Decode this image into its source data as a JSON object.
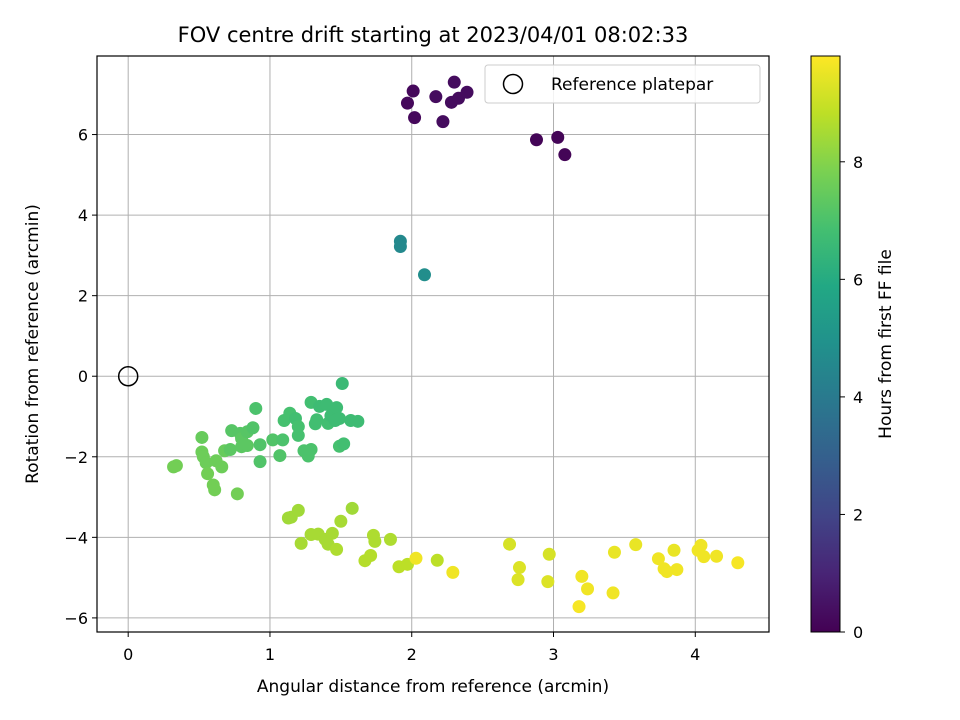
{
  "chart_data": {
    "type": "scatter",
    "title": "FOV centre drift starting at 2023/04/01 08:02:33",
    "xlabel": "Angular distance from reference (arcmin)",
    "ylabel": "Rotation from reference (arcmin)",
    "xlim": [
      -0.22,
      4.52
    ],
    "ylim": [
      -6.35,
      7.95
    ],
    "xticks": [
      "0",
      "1",
      "2",
      "3",
      "4"
    ],
    "yticks": [
      "−6",
      "−4",
      "−2",
      "0",
      "2",
      "4",
      "6"
    ],
    "grid": true,
    "legend": {
      "position": "top-right",
      "entries": [
        "Reference platepar"
      ]
    },
    "reference_point": {
      "x": 0,
      "y": 0
    },
    "colorbar": {
      "label": "Hours from first FF file",
      "colormap": "viridis",
      "range": [
        0,
        9.8
      ],
      "ticks": [
        "0",
        "2",
        "4",
        "6",
        "8"
      ]
    },
    "points": [
      {
        "x": 1.97,
        "y": 6.78,
        "c": 0.2
      },
      {
        "x": 2.01,
        "y": 7.08,
        "c": 0.2
      },
      {
        "x": 2.02,
        "y": 6.42,
        "c": 0.2
      },
      {
        "x": 2.17,
        "y": 6.94,
        "c": 0.3
      },
      {
        "x": 2.22,
        "y": 6.32,
        "c": 0.3
      },
      {
        "x": 2.28,
        "y": 6.8,
        "c": 0.3
      },
      {
        "x": 2.3,
        "y": 7.3,
        "c": 0.3
      },
      {
        "x": 2.33,
        "y": 6.9,
        "c": 0.3
      },
      {
        "x": 2.39,
        "y": 7.05,
        "c": 0.3
      },
      {
        "x": 2.88,
        "y": 5.87,
        "c": 0.1
      },
      {
        "x": 3.03,
        "y": 5.93,
        "c": 0.1
      },
      {
        "x": 3.08,
        "y": 5.5,
        "c": 0.1
      },
      {
        "x": 1.92,
        "y": 3.35,
        "c": 4.6
      },
      {
        "x": 1.92,
        "y": 3.22,
        "c": 4.6
      },
      {
        "x": 2.09,
        "y": 2.52,
        "c": 4.8
      },
      {
        "x": 0.34,
        "y": -2.22,
        "c": 7.7
      },
      {
        "x": 0.32,
        "y": -2.25,
        "c": 7.7
      },
      {
        "x": 0.52,
        "y": -1.52,
        "c": 7.5
      },
      {
        "x": 0.52,
        "y": -1.88,
        "c": 7.6
      },
      {
        "x": 0.53,
        "y": -2.0,
        "c": 7.6
      },
      {
        "x": 0.55,
        "y": -2.15,
        "c": 7.6
      },
      {
        "x": 0.56,
        "y": -2.42,
        "c": 7.7
      },
      {
        "x": 0.6,
        "y": -2.7,
        "c": 7.7
      },
      {
        "x": 0.61,
        "y": -2.82,
        "c": 7.7
      },
      {
        "x": 0.62,
        "y": -2.1,
        "c": 7.6
      },
      {
        "x": 0.66,
        "y": -2.25,
        "c": 7.6
      },
      {
        "x": 0.68,
        "y": -1.85,
        "c": 7.5
      },
      {
        "x": 0.72,
        "y": -1.82,
        "c": 7.3
      },
      {
        "x": 0.73,
        "y": -1.35,
        "c": 7.2
      },
      {
        "x": 0.77,
        "y": -2.92,
        "c": 7.7
      },
      {
        "x": 0.79,
        "y": -1.42,
        "c": 7.2
      },
      {
        "x": 0.8,
        "y": -1.55,
        "c": 7.3
      },
      {
        "x": 0.8,
        "y": -1.75,
        "c": 7.3
      },
      {
        "x": 0.84,
        "y": -1.38,
        "c": 7.2
      },
      {
        "x": 0.84,
        "y": -1.72,
        "c": 7.3
      },
      {
        "x": 0.88,
        "y": -1.28,
        "c": 7.1
      },
      {
        "x": 0.9,
        "y": -0.8,
        "c": 7.0
      },
      {
        "x": 0.93,
        "y": -1.7,
        "c": 7.1
      },
      {
        "x": 0.93,
        "y": -2.12,
        "c": 7.1
      },
      {
        "x": 1.02,
        "y": -1.58,
        "c": 7.1
      },
      {
        "x": 1.07,
        "y": -1.97,
        "c": 7.1
      },
      {
        "x": 1.09,
        "y": -1.58,
        "c": 7.0
      },
      {
        "x": 1.1,
        "y": -1.1,
        "c": 6.9
      },
      {
        "x": 1.14,
        "y": -0.92,
        "c": 6.9
      },
      {
        "x": 1.18,
        "y": -1.05,
        "c": 6.8
      },
      {
        "x": 1.2,
        "y": -1.25,
        "c": 6.9
      },
      {
        "x": 1.2,
        "y": -1.47,
        "c": 6.9
      },
      {
        "x": 1.24,
        "y": -1.85,
        "c": 7.0
      },
      {
        "x": 1.27,
        "y": -1.98,
        "c": 7.0
      },
      {
        "x": 1.29,
        "y": -1.82,
        "c": 7.0
      },
      {
        "x": 1.29,
        "y": -0.65,
        "c": 6.8
      },
      {
        "x": 1.32,
        "y": -1.18,
        "c": 6.8
      },
      {
        "x": 1.33,
        "y": -1.08,
        "c": 6.8
      },
      {
        "x": 1.35,
        "y": -0.75,
        "c": 6.7
      },
      {
        "x": 1.4,
        "y": -0.7,
        "c": 6.7
      },
      {
        "x": 1.41,
        "y": -1.17,
        "c": 6.8
      },
      {
        "x": 1.43,
        "y": -0.98,
        "c": 6.7
      },
      {
        "x": 1.46,
        "y": -1.1,
        "c": 6.7
      },
      {
        "x": 1.47,
        "y": -0.78,
        "c": 6.7
      },
      {
        "x": 1.49,
        "y": -1.74,
        "c": 6.9
      },
      {
        "x": 1.49,
        "y": -1.05,
        "c": 6.7
      },
      {
        "x": 1.51,
        "y": -0.18,
        "c": 6.6
      },
      {
        "x": 1.52,
        "y": -1.68,
        "c": 6.8
      },
      {
        "x": 1.57,
        "y": -1.1,
        "c": 6.7
      },
      {
        "x": 1.62,
        "y": -1.12,
        "c": 6.7
      },
      {
        "x": 1.13,
        "y": -3.52,
        "c": 8.4
      },
      {
        "x": 1.15,
        "y": -3.5,
        "c": 8.4
      },
      {
        "x": 1.2,
        "y": -3.33,
        "c": 8.4
      },
      {
        "x": 1.22,
        "y": -4.15,
        "c": 8.5
      },
      {
        "x": 1.29,
        "y": -3.93,
        "c": 8.5
      },
      {
        "x": 1.34,
        "y": -3.92,
        "c": 8.5
      },
      {
        "x": 1.39,
        "y": -4.05,
        "c": 8.5
      },
      {
        "x": 1.41,
        "y": -4.17,
        "c": 8.5
      },
      {
        "x": 1.44,
        "y": -3.9,
        "c": 8.5
      },
      {
        "x": 1.47,
        "y": -4.3,
        "c": 8.6
      },
      {
        "x": 1.5,
        "y": -3.6,
        "c": 8.5
      },
      {
        "x": 1.58,
        "y": -3.28,
        "c": 8.4
      },
      {
        "x": 1.67,
        "y": -4.58,
        "c": 8.7
      },
      {
        "x": 1.71,
        "y": -4.45,
        "c": 8.7
      },
      {
        "x": 1.73,
        "y": -3.95,
        "c": 8.6
      },
      {
        "x": 1.74,
        "y": -4.1,
        "c": 8.6
      },
      {
        "x": 1.85,
        "y": -4.05,
        "c": 8.6
      },
      {
        "x": 1.91,
        "y": -4.73,
        "c": 8.8
      },
      {
        "x": 1.97,
        "y": -4.67,
        "c": 8.8
      },
      {
        "x": 2.18,
        "y": -4.57,
        "c": 8.8
      },
      {
        "x": 2.03,
        "y": -4.52,
        "c": 9.6
      },
      {
        "x": 2.29,
        "y": -4.87,
        "c": 9.6
      },
      {
        "x": 2.69,
        "y": -4.17,
        "c": 9.2
      },
      {
        "x": 2.75,
        "y": -5.05,
        "c": 9.3
      },
      {
        "x": 2.76,
        "y": -4.75,
        "c": 9.3
      },
      {
        "x": 2.96,
        "y": -5.1,
        "c": 9.3
      },
      {
        "x": 2.97,
        "y": -4.42,
        "c": 9.2
      },
      {
        "x": 3.18,
        "y": -5.72,
        "c": 9.7
      },
      {
        "x": 3.2,
        "y": -4.97,
        "c": 9.6
      },
      {
        "x": 3.24,
        "y": -5.28,
        "c": 9.6
      },
      {
        "x": 3.42,
        "y": -5.38,
        "c": 9.6
      },
      {
        "x": 3.43,
        "y": -4.37,
        "c": 9.5
      },
      {
        "x": 3.58,
        "y": -4.18,
        "c": 9.5
      },
      {
        "x": 3.74,
        "y": -4.53,
        "c": 9.6
      },
      {
        "x": 3.78,
        "y": -4.78,
        "c": 9.6
      },
      {
        "x": 3.8,
        "y": -4.85,
        "c": 9.6
      },
      {
        "x": 3.85,
        "y": -4.32,
        "c": 9.5
      },
      {
        "x": 3.87,
        "y": -4.8,
        "c": 9.6
      },
      {
        "x": 4.02,
        "y": -4.32,
        "c": 9.6
      },
      {
        "x": 4.04,
        "y": -4.2,
        "c": 9.6
      },
      {
        "x": 4.06,
        "y": -4.48,
        "c": 9.6
      },
      {
        "x": 4.15,
        "y": -4.47,
        "c": 9.6
      },
      {
        "x": 4.3,
        "y": -4.63,
        "c": 9.7
      }
    ]
  }
}
